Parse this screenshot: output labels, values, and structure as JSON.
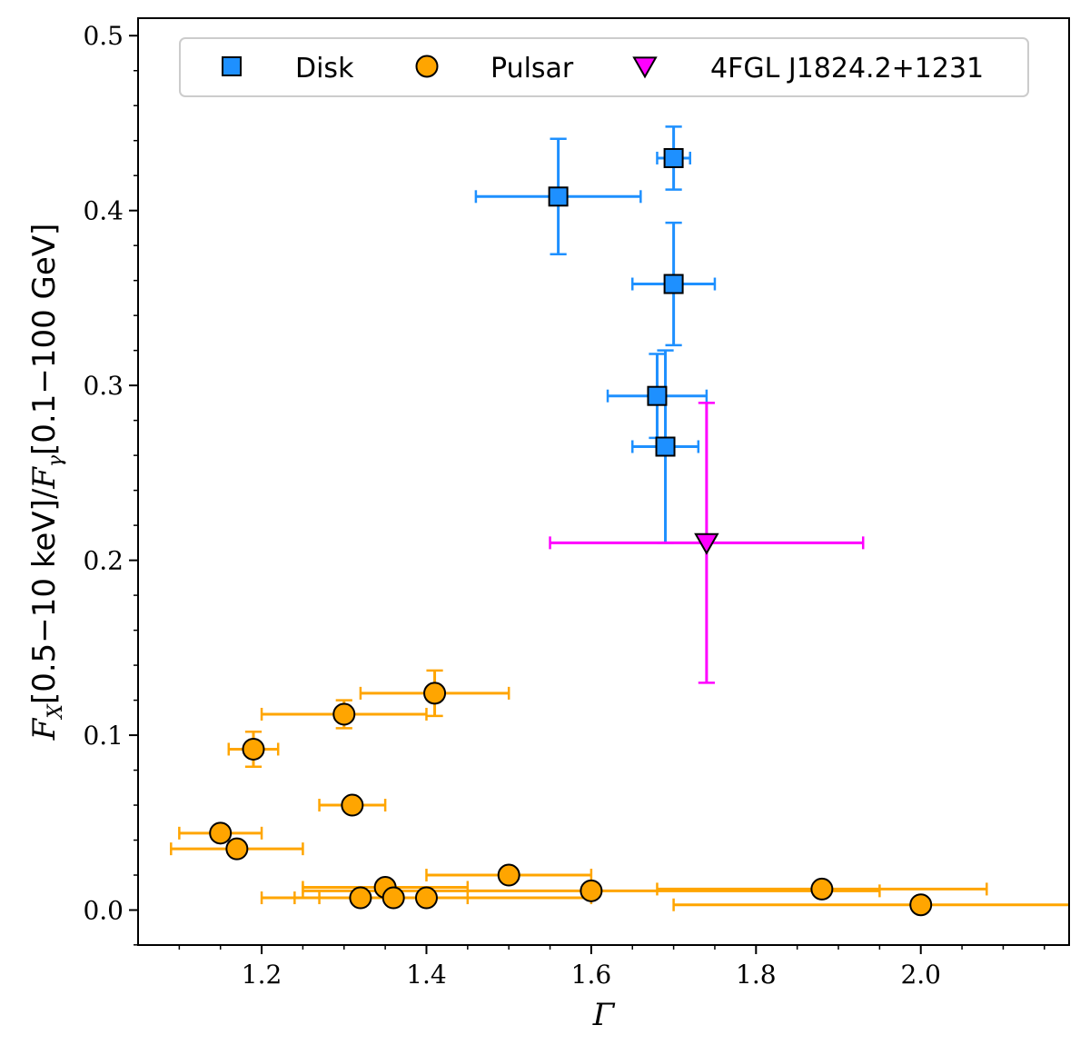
{
  "chart_data": {
    "type": "scatter",
    "xlabel": "Γ",
    "ylabel": "F_X[0.5−10 keV]/F_γ[0.1−100 GeV]",
    "ylabel_parts": {
      "fx": "F",
      "fx_sub": "X",
      "band1": "[0.5−10 keV]",
      "slash": "/",
      "fg": "F",
      "fg_sub": "γ",
      "band2": "[0.1−100 GeV]"
    },
    "xlim": [
      1.05,
      2.18
    ],
    "ylim": [
      -0.02,
      0.51
    ],
    "xticks": [
      1.2,
      1.4,
      1.6,
      1.8,
      2.0
    ],
    "xtick_labels": [
      "1.2",
      "1.4",
      "1.6",
      "1.8",
      "2.0"
    ],
    "yticks": [
      0.0,
      0.1,
      0.2,
      0.3,
      0.4,
      0.5
    ],
    "ytick_labels": [
      "0.0",
      "0.1",
      "0.2",
      "0.3",
      "0.4",
      "0.5"
    ],
    "grid": false,
    "legend_position": "top",
    "series": [
      {
        "name": "Disk",
        "marker": "square",
        "color": "#1e90ff",
        "points": [
          {
            "x": 1.56,
            "y": 0.408,
            "xerr": [
              0.1,
              0.1
            ],
            "yerr": [
              0.033,
              0.033
            ]
          },
          {
            "x": 1.7,
            "y": 0.43,
            "xerr": [
              0.02,
              0.02
            ],
            "yerr": [
              0.018,
              0.018
            ]
          },
          {
            "x": 1.7,
            "y": 0.358,
            "xerr": [
              0.05,
              0.05
            ],
            "yerr": [
              0.035,
              0.035
            ]
          },
          {
            "x": 1.68,
            "y": 0.294,
            "xerr": [
              0.06,
              0.06
            ],
            "yerr": [
              0.024,
              0.024
            ]
          },
          {
            "x": 1.69,
            "y": 0.265,
            "xerr": [
              0.04,
              0.04
            ],
            "yerr": [
              0.055,
              0.055
            ]
          }
        ]
      },
      {
        "name": "Pulsar",
        "marker": "circle",
        "color": "#ffa500",
        "points": [
          {
            "x": 1.41,
            "y": 0.124,
            "xerr": [
              0.09,
              0.09
            ],
            "yerr": [
              0.013,
              0.013
            ]
          },
          {
            "x": 1.3,
            "y": 0.112,
            "xerr": [
              0.1,
              0.1
            ],
            "yerr": [
              0.008,
              0.008
            ]
          },
          {
            "x": 1.19,
            "y": 0.092,
            "xerr": [
              0.03,
              0.03
            ],
            "yerr": [
              0.01,
              0.01
            ]
          },
          {
            "x": 1.31,
            "y": 0.06,
            "xerr": [
              0.04,
              0.04
            ],
            "yerr": [
              0.0,
              0.0
            ]
          },
          {
            "x": 1.15,
            "y": 0.044,
            "xerr": [
              0.05,
              0.05
            ],
            "yerr": [
              0.0,
              0.0
            ]
          },
          {
            "x": 1.17,
            "y": 0.035,
            "xerr": [
              0.08,
              0.08
            ],
            "yerr": [
              0.0,
              0.0
            ]
          },
          {
            "x": 1.5,
            "y": 0.02,
            "xerr": [
              0.1,
              0.1
            ],
            "yerr": [
              0.0,
              0.0
            ]
          },
          {
            "x": 1.35,
            "y": 0.013,
            "xerr": [
              0.1,
              0.1
            ],
            "yerr": [
              0.0,
              0.0
            ]
          },
          {
            "x": 1.6,
            "y": 0.011,
            "xerr": [
              0.35,
              0.35
            ],
            "yerr": [
              0.0,
              0.0
            ]
          },
          {
            "x": 1.88,
            "y": 0.012,
            "xerr": [
              0.2,
              0.2
            ],
            "yerr": [
              0.0,
              0.0
            ]
          },
          {
            "x": 1.32,
            "y": 0.007,
            "xerr": [
              0.08,
              0.08
            ],
            "yerr": [
              0.0,
              0.0
            ]
          },
          {
            "x": 1.36,
            "y": 0.007,
            "xerr": [
              0.09,
              0.09
            ],
            "yerr": [
              0.0,
              0.0
            ]
          },
          {
            "x": 1.4,
            "y": 0.007,
            "xerr": [
              0.2,
              0.2
            ],
            "yerr": [
              0.0,
              0.0
            ]
          },
          {
            "x": 2.0,
            "y": 0.003,
            "xerr": [
              0.3,
              0.3
            ],
            "yerr": [
              0.0,
              0.0
            ]
          }
        ]
      },
      {
        "name": "4FGL J1824.2+1231",
        "marker": "triangle-down",
        "color": "#ff00ff",
        "points": [
          {
            "x": 1.74,
            "y": 0.21,
            "xerr": [
              0.19,
              0.19
            ],
            "yerr": [
              0.08,
              0.08
            ]
          }
        ]
      }
    ]
  }
}
